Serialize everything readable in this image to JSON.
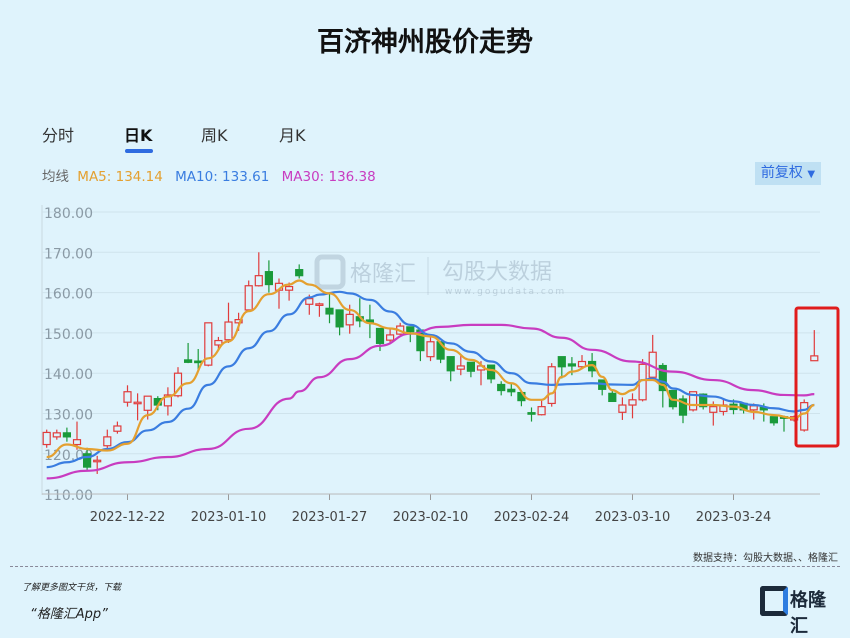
{
  "title": "百济神州股价走势",
  "tabs": [
    {
      "label": "分时"
    },
    {
      "label": "日K",
      "active": true
    },
    {
      "label": "周K"
    },
    {
      "label": "月K"
    }
  ],
  "ma": {
    "label": "均线",
    "ma5": "MA5: 134.14",
    "ma10": "MA10: 133.61",
    "ma30": "MA30: 136.38"
  },
  "adjust_label": "前复权",
  "colors": {
    "up": "#e03c3c",
    "down": "#1a9a3a",
    "ma5": "#e4a030",
    "ma10": "#3a7de0",
    "ma30": "#c83cc0",
    "highlight": "#e01c1c"
  },
  "watermark": {
    "brand": "格隆汇",
    "data_brand": "勾股大数据",
    "url": "www.gogudata.com"
  },
  "source": "数据支持：勾股大数据、、格隆汇",
  "footer": {
    "line1": "了解更多图文干货，下载",
    "line2": "“格隆汇App”",
    "logo": "格隆汇"
  },
  "chart_data": {
    "type": "candlestick",
    "ylim": [
      110,
      180
    ],
    "y_ticks": [
      "180.00",
      "170.00",
      "160.00",
      "150.00",
      "140.00",
      "130.00",
      "120.00",
      "110.00"
    ],
    "y_tick_values": [
      180,
      170,
      160,
      150,
      140,
      130,
      120,
      110
    ],
    "x_ticks": [
      {
        "label": "2022-12-22",
        "index": 8
      },
      {
        "label": "2023-01-10",
        "index": 18
      },
      {
        "label": "2023-01-27",
        "index": 28
      },
      {
        "label": "2023-02-10",
        "index": 38
      },
      {
        "label": "2023-02-24",
        "index": 48
      },
      {
        "label": "2023-03-10",
        "index": 58
      },
      {
        "label": "2023-03-24",
        "index": 68
      }
    ],
    "ohlc": [
      [
        122.3,
        125.3,
        126,
        121.5
      ],
      [
        124.2,
        125.2,
        126,
        123.5
      ],
      [
        125.2,
        124.2,
        126.5,
        123
      ],
      [
        122.3,
        123.5,
        128,
        121
      ],
      [
        120,
        116.7,
        121.5,
        116
      ],
      [
        118.2,
        118.4,
        119.5,
        115
      ],
      [
        122,
        124.2,
        126,
        121
      ],
      [
        125.6,
        126.9,
        128,
        125
      ],
      [
        132.8,
        135.4,
        137,
        131.7
      ],
      [
        132.5,
        132.8,
        135,
        128.3
      ],
      [
        130.8,
        134.3,
        134.3,
        128.5
      ],
      [
        133.7,
        132.1,
        134.3,
        130.8
      ],
      [
        131.9,
        134.6,
        136.5,
        129.5
      ],
      [
        134.4,
        140,
        141.5,
        134
      ],
      [
        143.3,
        142.7,
        147.5,
        142.5
      ],
      [
        143,
        142.8,
        146,
        140.5
      ],
      [
        142,
        152.5,
        152.5,
        141.7
      ],
      [
        147,
        148.1,
        149,
        146
      ],
      [
        148.3,
        152.7,
        157.5,
        147.5
      ],
      [
        152.5,
        153.3,
        155,
        150.5
      ],
      [
        155.7,
        161.7,
        163,
        155.7
      ],
      [
        161.7,
        164.2,
        170,
        161.5
      ],
      [
        165.2,
        162,
        168,
        160
      ],
      [
        160.6,
        162.3,
        163.5,
        156
      ],
      [
        160.6,
        161.5,
        162.5,
        158
      ],
      [
        165.7,
        164.2,
        167,
        163.5
      ],
      [
        157.1,
        158.5,
        159.5,
        154.5
      ],
      [
        157,
        157.2,
        157.5,
        154
      ],
      [
        156.1,
        154.7,
        159.8,
        152.4
      ],
      [
        155.7,
        151.5,
        155.7,
        149.4
      ],
      [
        152,
        154.6,
        157,
        149.8
      ],
      [
        154,
        153,
        158.6,
        151.4
      ],
      [
        153.2,
        152.7,
        157,
        148.7
      ],
      [
        151.1,
        147.4,
        151.1,
        145.5
      ],
      [
        148.2,
        149.5,
        151,
        147.5
      ],
      [
        149.7,
        151.7,
        152.5,
        149.5
      ],
      [
        151.5,
        150.3,
        151.5,
        147.7
      ],
      [
        150.7,
        145.6,
        151,
        143
      ],
      [
        144.1,
        147.8,
        149,
        143
      ],
      [
        147.8,
        143.5,
        147.8,
        142.5
      ],
      [
        144.1,
        140.6,
        144.1,
        138
      ],
      [
        141,
        141.8,
        144.3,
        139.5
      ],
      [
        142.7,
        140.5,
        142.7,
        139
      ],
      [
        140.8,
        141.8,
        143,
        137
      ],
      [
        142,
        138.6,
        142,
        137.5
      ],
      [
        137.2,
        135.7,
        138,
        134.5
      ],
      [
        136,
        135.4,
        137.5,
        134.3
      ],
      [
        135.2,
        133.2,
        135.2,
        131.8
      ],
      [
        130.2,
        130,
        131.5,
        128
      ],
      [
        129.7,
        131.7,
        133.5,
        129.5
      ],
      [
        132.5,
        141.6,
        142.5,
        131.7
      ],
      [
        144.1,
        141.6,
        144.1,
        138.7
      ],
      [
        142.3,
        141.8,
        144,
        139.5
      ],
      [
        141.6,
        142.9,
        144.5,
        141
      ],
      [
        142.9,
        140.6,
        145,
        139
      ],
      [
        138.3,
        136,
        138.3,
        134.5
      ],
      [
        135,
        133,
        136,
        133
      ],
      [
        130.3,
        132.1,
        134,
        128.4
      ],
      [
        132.1,
        133.4,
        135,
        128.8
      ],
      [
        133.4,
        142.2,
        143.5,
        133
      ],
      [
        139,
        145.2,
        149.5,
        139
      ],
      [
        141.9,
        135.7,
        142.5,
        131.5
      ],
      [
        135.7,
        131.7,
        135.7,
        131
      ],
      [
        133.6,
        129.6,
        134.5,
        127.6
      ],
      [
        130.9,
        135.4,
        135.4,
        130.5
      ],
      [
        134.8,
        131.7,
        135,
        131
      ],
      [
        130.3,
        131.7,
        133,
        127
      ],
      [
        130.5,
        132.1,
        133.5,
        129.5
      ],
      [
        132.3,
        131,
        133.5,
        129.8
      ],
      [
        132.5,
        130.9,
        132.5,
        130
      ],
      [
        130.9,
        131.9,
        132.5,
        128.5
      ],
      [
        131.5,
        130.9,
        132.5,
        128
      ],
      [
        129.2,
        127.7,
        129.2,
        127
      ],
      [
        129.2,
        128.8,
        129.5,
        125.5
      ],
      [
        128.4,
        129.2,
        129.5,
        128
      ],
      [
        125.9,
        132.7,
        133.5,
        125.5
      ],
      [
        143.1,
        144.3,
        150.7,
        143.1
      ]
    ],
    "ma5": [
      [
        0,
        119.2
      ],
      [
        2,
        122.3
      ],
      [
        4,
        121.2
      ],
      [
        6,
        120.8
      ],
      [
        8,
        122.5
      ],
      [
        10,
        129.6
      ],
      [
        12,
        134.2
      ],
      [
        14,
        137.5
      ],
      [
        16,
        143.7
      ],
      [
        18,
        147.9
      ],
      [
        20,
        155.4
      ],
      [
        22,
        159.6
      ],
      [
        24,
        162
      ],
      [
        25,
        163
      ],
      [
        26,
        162
      ],
      [
        28,
        159.8
      ],
      [
        30,
        155.7
      ],
      [
        32,
        152.4
      ],
      [
        34,
        151.1
      ],
      [
        36,
        149.9
      ],
      [
        38,
        149.1
      ],
      [
        40,
        145.8
      ],
      [
        42,
        143.3
      ],
      [
        44,
        140.8
      ],
      [
        46,
        137.5
      ],
      [
        48,
        133.4
      ],
      [
        49,
        133.4
      ],
      [
        50,
        135
      ],
      [
        51,
        139.1
      ],
      [
        52,
        140.4
      ],
      [
        54,
        142
      ],
      [
        55,
        139.1
      ],
      [
        56,
        135.8
      ],
      [
        57,
        134.8
      ],
      [
        58,
        135.8
      ],
      [
        59,
        138.3
      ],
      [
        60,
        138.3
      ],
      [
        61,
        137.1
      ],
      [
        62,
        133.4
      ],
      [
        64,
        132.1
      ],
      [
        66,
        132.1
      ],
      [
        68,
        131.7
      ],
      [
        70,
        130.4
      ],
      [
        72,
        129.6
      ],
      [
        74,
        128.8
      ],
      [
        75,
        130
      ],
      [
        76,
        132.1
      ]
    ],
    "ma10": [
      [
        0,
        116.7
      ],
      [
        2,
        117.9
      ],
      [
        4,
        119.2
      ],
      [
        6,
        121.2
      ],
      [
        8,
        122.9
      ],
      [
        10,
        125.8
      ],
      [
        12,
        127.9
      ],
      [
        14,
        131.2
      ],
      [
        16,
        137.1
      ],
      [
        18,
        141.7
      ],
      [
        20,
        146.2
      ],
      [
        22,
        150.4
      ],
      [
        24,
        154.6
      ],
      [
        26,
        158.8
      ],
      [
        27,
        159.5
      ],
      [
        29,
        160.2
      ],
      [
        30,
        159.8
      ],
      [
        32,
        158.2
      ],
      [
        34,
        155.3
      ],
      [
        36,
        152
      ],
      [
        38,
        149.5
      ],
      [
        40,
        147.4
      ],
      [
        42,
        145.3
      ],
      [
        44,
        142.9
      ],
      [
        46,
        140
      ],
      [
        48,
        137.5
      ],
      [
        50,
        137.1
      ],
      [
        52,
        137.3
      ],
      [
        54,
        137.5
      ],
      [
        56,
        137.2
      ],
      [
        58,
        137.1
      ],
      [
        59,
        138.3
      ],
      [
        60,
        138.7
      ],
      [
        61,
        137.9
      ],
      [
        62,
        136.2
      ],
      [
        64,
        134.6
      ],
      [
        66,
        134.2
      ],
      [
        68,
        133
      ],
      [
        70,
        132.1
      ],
      [
        72,
        131.3
      ],
      [
        74,
        130.5
      ],
      [
        75,
        130.9
      ],
      [
        76,
        132.1
      ]
    ],
    "ma30": [
      [
        0,
        113.9
      ],
      [
        4,
        115.8
      ],
      [
        8,
        117.9
      ],
      [
        12,
        119.2
      ],
      [
        16,
        121.2
      ],
      [
        20,
        126.2
      ],
      [
        24,
        133.7
      ],
      [
        25,
        135.5
      ],
      [
        27,
        139
      ],
      [
        30,
        143.5
      ],
      [
        33,
        146.8
      ],
      [
        36,
        149.8
      ],
      [
        39,
        151.5
      ],
      [
        42,
        152
      ],
      [
        45,
        152
      ],
      [
        48,
        151.1
      ],
      [
        51,
        148.8
      ],
      [
        54,
        145.8
      ],
      [
        58,
        142.9
      ],
      [
        62,
        140.4
      ],
      [
        66,
        138.3
      ],
      [
        70,
        135.8
      ],
      [
        73,
        134.6
      ],
      [
        75,
        134.5
      ],
      [
        76,
        134.8
      ]
    ],
    "highlight_last": 2
  }
}
